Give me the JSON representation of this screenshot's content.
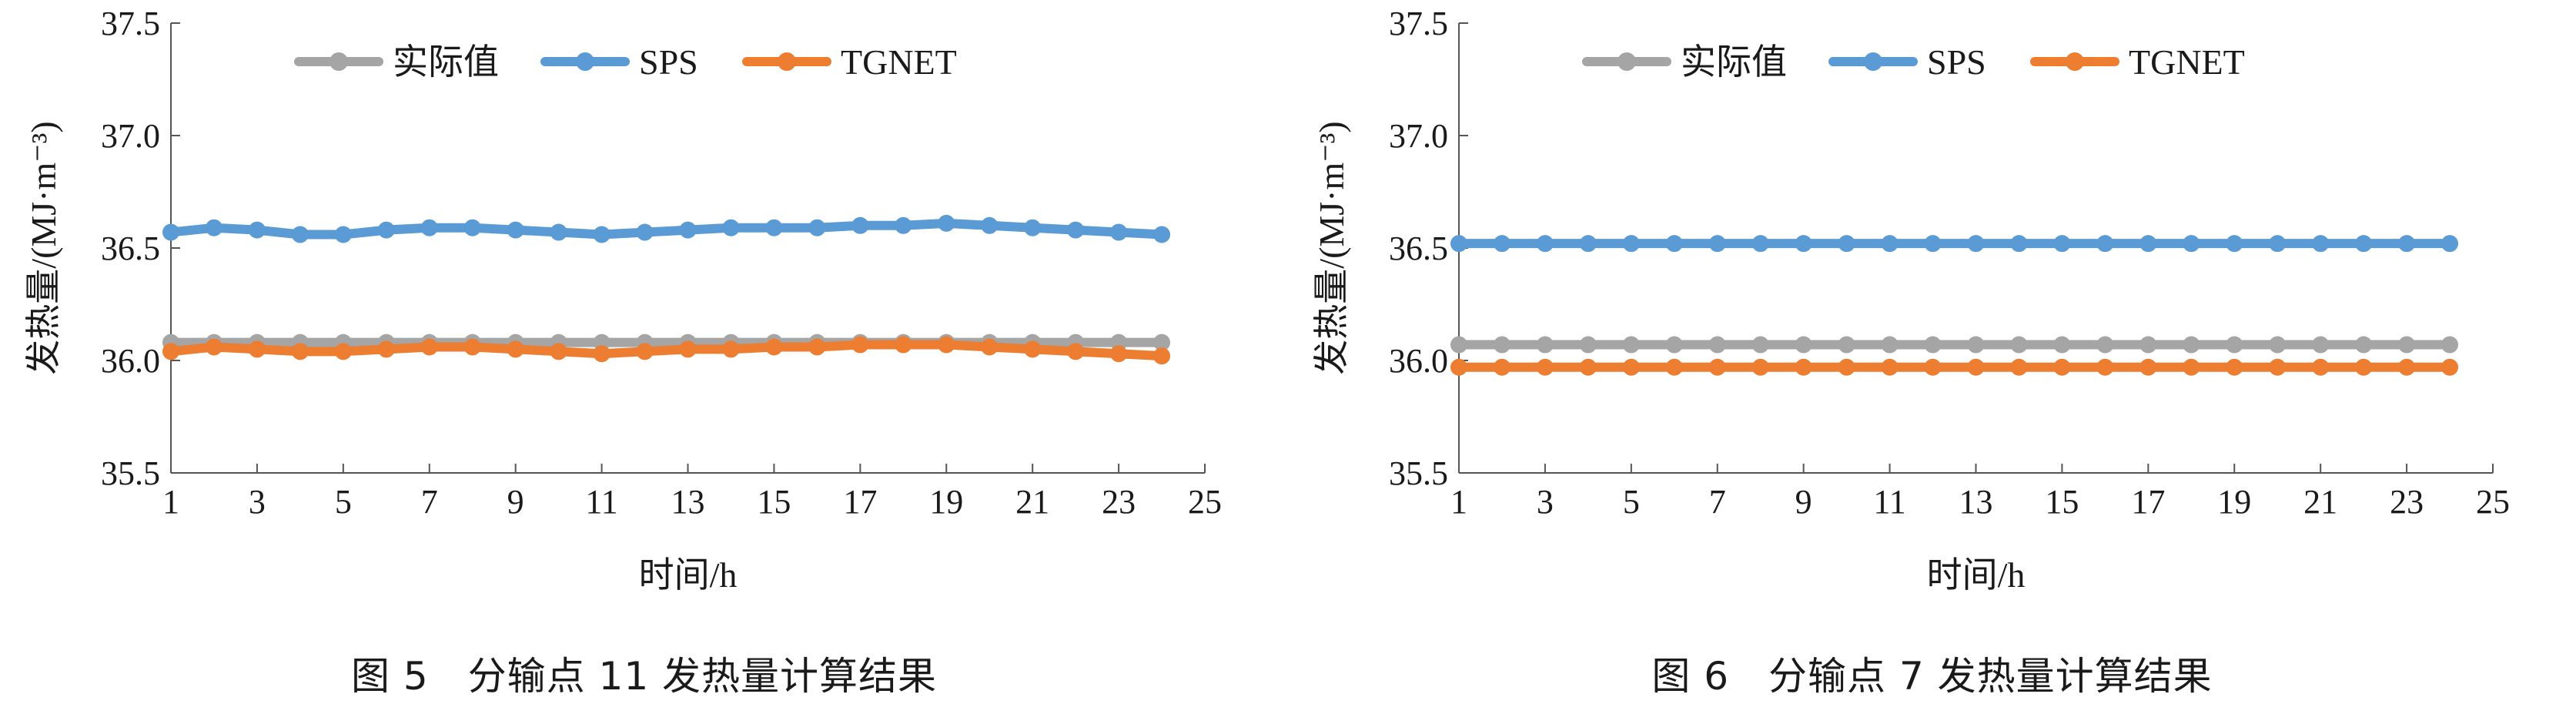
{
  "charts": [
    {
      "caption": "图 5　分输点 11 发热量计算结果",
      "chart_data": {
        "type": "line",
        "xlabel": "时间/h",
        "ylabel": "发热量/(MJ·m⁻³)",
        "xlim": [
          1,
          25
        ],
        "ylim": [
          35.5,
          37.5
        ],
        "x_ticks": [
          "1",
          "3",
          "5",
          "7",
          "9",
          "11",
          "13",
          "15",
          "17",
          "19",
          "21",
          "23",
          "25"
        ],
        "y_ticks": [
          "35.5",
          "36.0",
          "36.5",
          "37.0",
          "37.5"
        ],
        "legend_position": "top",
        "grid": false,
        "x": [
          1,
          2,
          3,
          4,
          5,
          6,
          7,
          8,
          9,
          10,
          11,
          12,
          13,
          14,
          15,
          16,
          17,
          18,
          19,
          20,
          21,
          22,
          23,
          24
        ],
        "series": [
          {
            "name": "实际值",
            "color": "#a5a5a5",
            "values": [
              36.08,
              36.08,
              36.08,
              36.08,
              36.08,
              36.08,
              36.08,
              36.08,
              36.08,
              36.08,
              36.08,
              36.08,
              36.08,
              36.08,
              36.08,
              36.08,
              36.08,
              36.08,
              36.08,
              36.08,
              36.08,
              36.08,
              36.08,
              36.08
            ]
          },
          {
            "name": "SPS",
            "color": "#5b9bd5",
            "values": [
              36.57,
              36.59,
              36.58,
              36.56,
              36.56,
              36.58,
              36.59,
              36.59,
              36.58,
              36.57,
              36.56,
              36.57,
              36.58,
              36.59,
              36.59,
              36.59,
              36.6,
              36.6,
              36.61,
              36.6,
              36.59,
              36.58,
              36.57,
              36.56
            ]
          },
          {
            "name": "TGNET",
            "color": "#ed7d31",
            "values": [
              36.04,
              36.06,
              36.05,
              36.04,
              36.04,
              36.05,
              36.06,
              36.06,
              36.05,
              36.04,
              36.03,
              36.04,
              36.05,
              36.05,
              36.06,
              36.06,
              36.07,
              36.07,
              36.07,
              36.06,
              36.05,
              36.04,
              36.03,
              36.02
            ]
          }
        ]
      }
    },
    {
      "caption": "图 6　分输点 7 发热量计算结果",
      "chart_data": {
        "type": "line",
        "xlabel": "时间/h",
        "ylabel": "发热量/(MJ·m⁻³)",
        "xlim": [
          1,
          25
        ],
        "ylim": [
          35.5,
          37.5
        ],
        "x_ticks": [
          "1",
          "3",
          "5",
          "7",
          "9",
          "11",
          "13",
          "15",
          "17",
          "19",
          "21",
          "23",
          "25"
        ],
        "y_ticks": [
          "35.5",
          "36.0",
          "36.5",
          "37.0",
          "37.5"
        ],
        "legend_position": "top",
        "grid": false,
        "x": [
          1,
          2,
          3,
          4,
          5,
          6,
          7,
          8,
          9,
          10,
          11,
          12,
          13,
          14,
          15,
          16,
          17,
          18,
          19,
          20,
          21,
          22,
          23,
          24
        ],
        "series": [
          {
            "name": "实际值",
            "color": "#a5a5a5",
            "values": [
              36.07,
              36.07,
              36.07,
              36.07,
              36.07,
              36.07,
              36.07,
              36.07,
              36.07,
              36.07,
              36.07,
              36.07,
              36.07,
              36.07,
              36.07,
              36.07,
              36.07,
              36.07,
              36.07,
              36.07,
              36.07,
              36.07,
              36.07,
              36.07
            ]
          },
          {
            "name": "SPS",
            "color": "#5b9bd5",
            "values": [
              36.52,
              36.52,
              36.52,
              36.52,
              36.52,
              36.52,
              36.52,
              36.52,
              36.52,
              36.52,
              36.52,
              36.52,
              36.52,
              36.52,
              36.52,
              36.52,
              36.52,
              36.52,
              36.52,
              36.52,
              36.52,
              36.52,
              36.52,
              36.52
            ]
          },
          {
            "name": "TGNET",
            "color": "#ed7d31",
            "values": [
              35.97,
              35.97,
              35.97,
              35.97,
              35.97,
              35.97,
              35.97,
              35.97,
              35.97,
              35.97,
              35.97,
              35.97,
              35.97,
              35.97,
              35.97,
              35.97,
              35.97,
              35.97,
              35.97,
              35.97,
              35.97,
              35.97,
              35.97,
              35.97
            ]
          }
        ]
      }
    }
  ]
}
